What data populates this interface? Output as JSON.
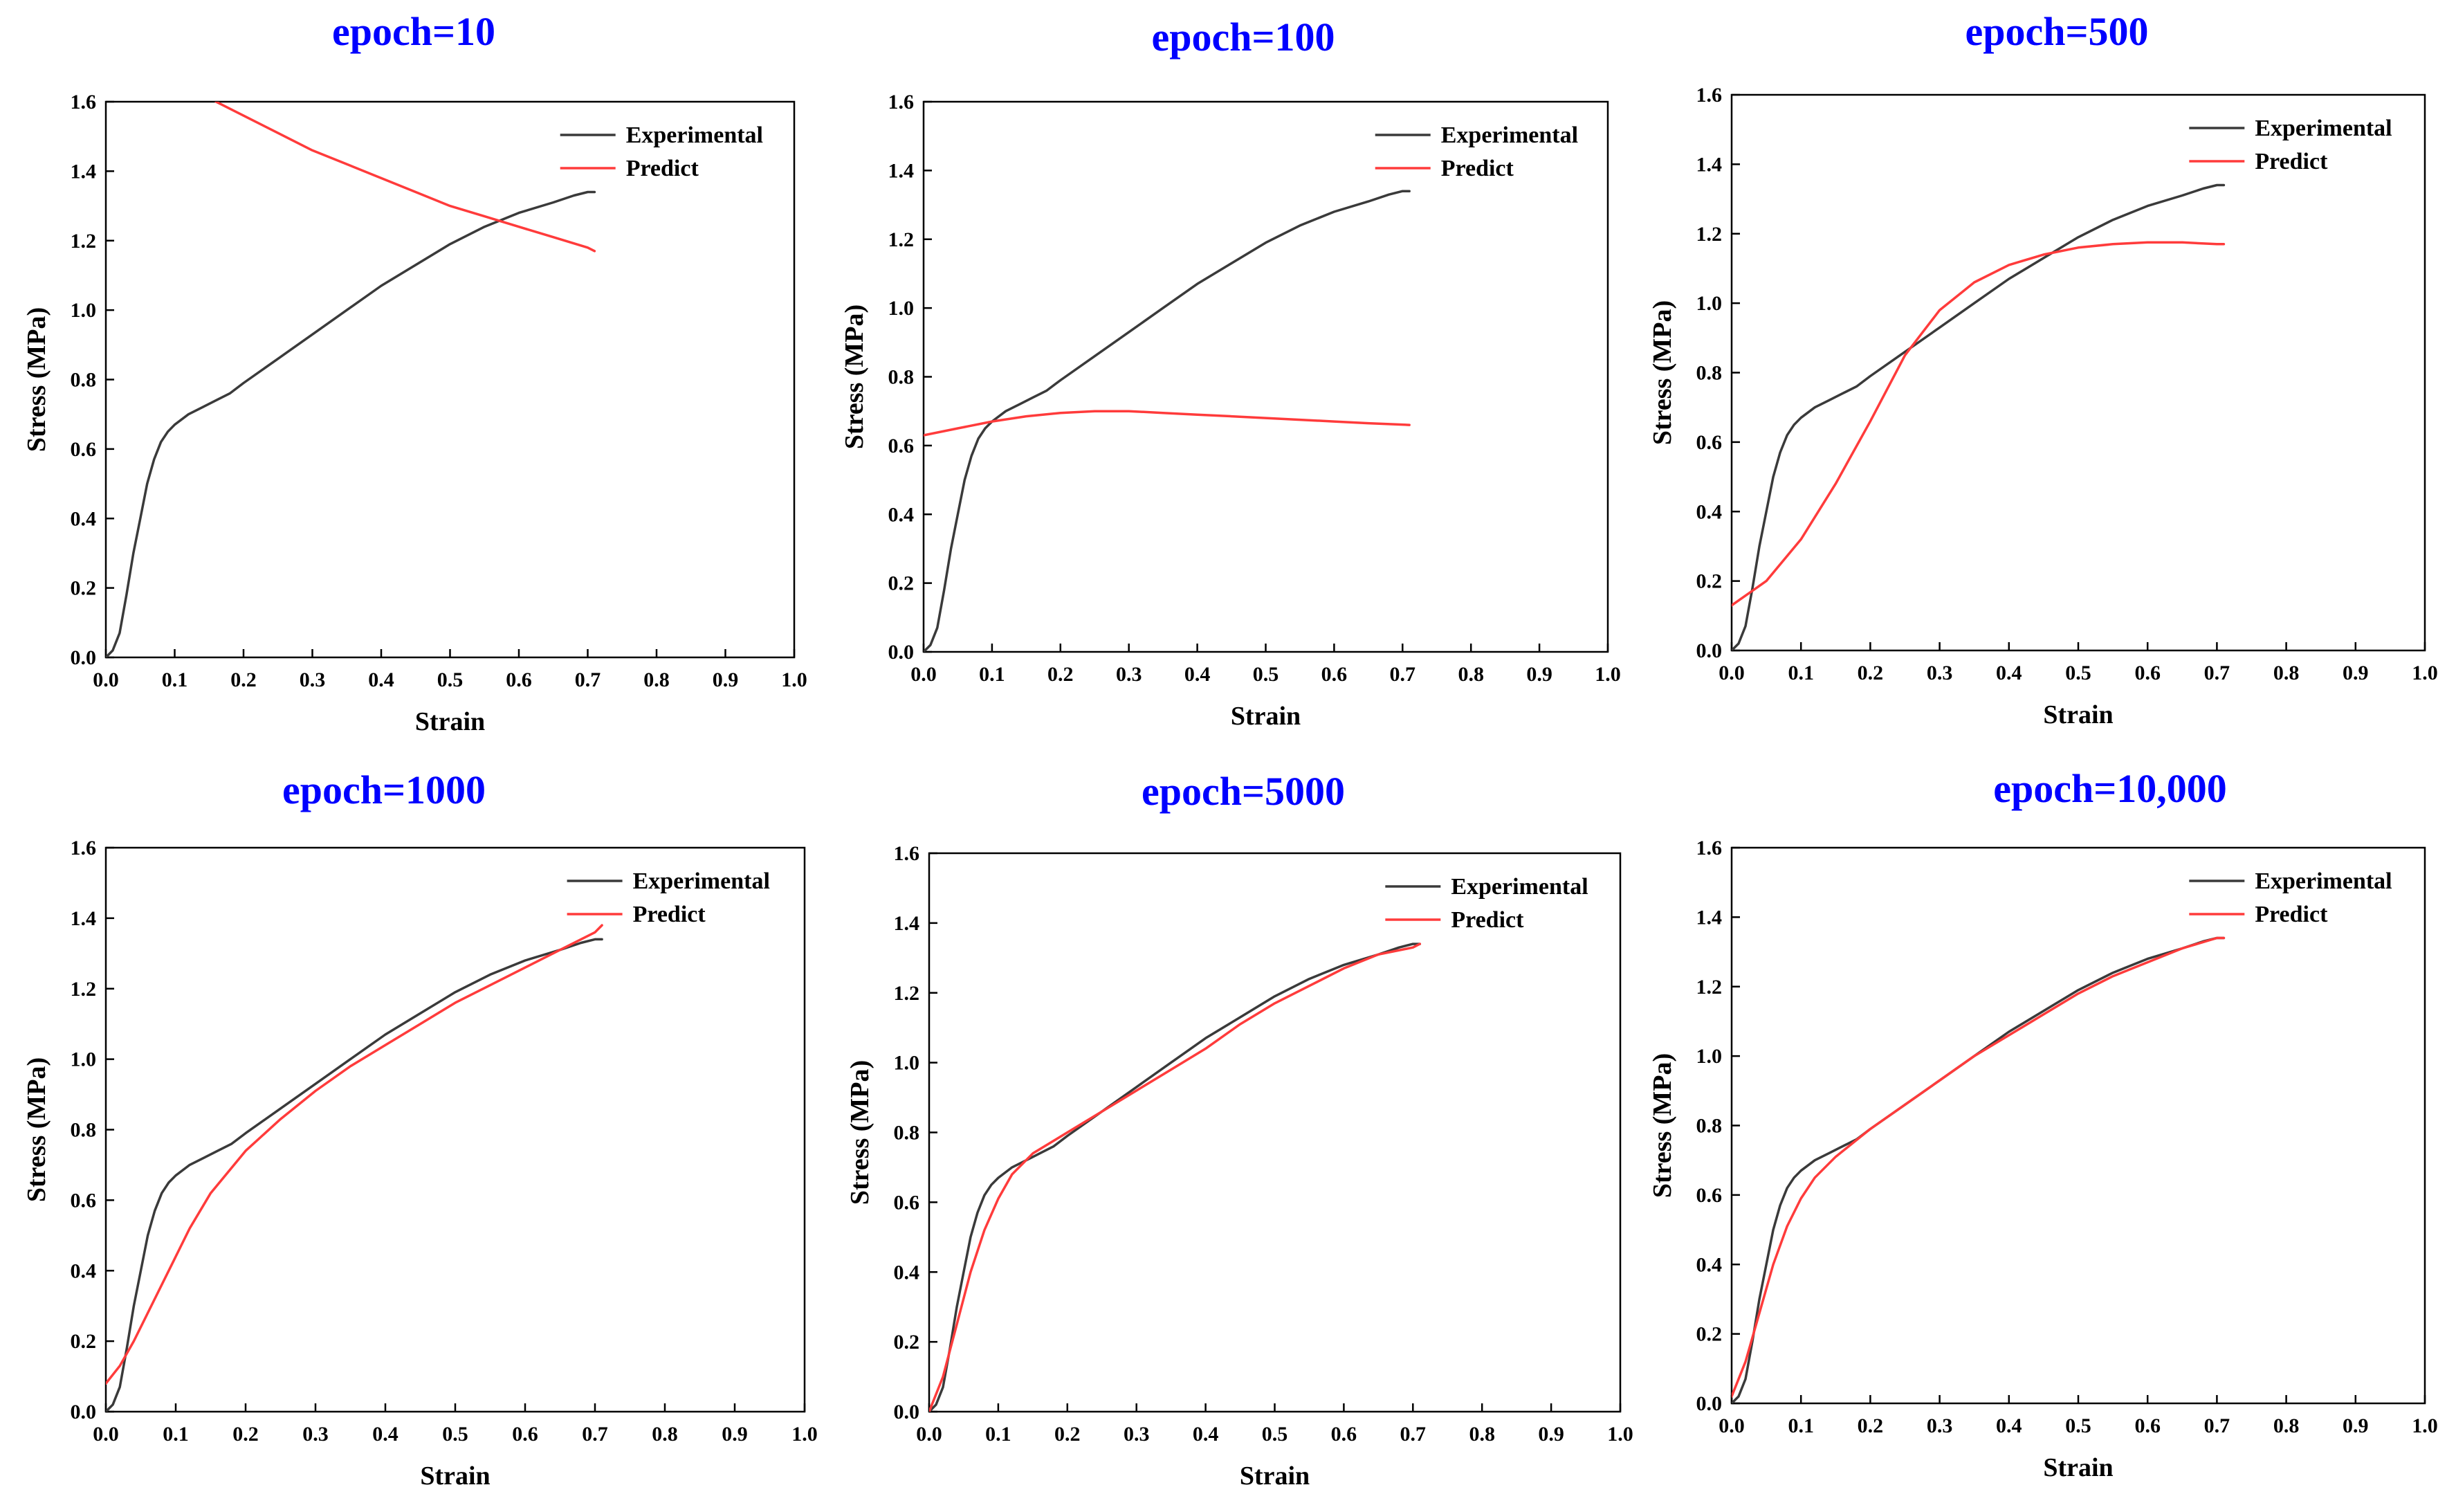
{
  "figure": {
    "axis_style": {
      "frame_color": "#000000",
      "tick_color": "#000000",
      "font_color": "#000000",
      "title_color": "#0000ff"
    },
    "series_colors": {
      "experimental": "#3a3a3a",
      "predict": "#ff3b3b"
    }
  },
  "chart_data": [
    {
      "type": "line",
      "title": "epoch=10",
      "xlabel": "Strain",
      "ylabel": "Stress (MPa)",
      "xlim": [
        0.0,
        1.0
      ],
      "ylim": [
        0.0,
        1.6
      ],
      "xticks": [
        "0.0",
        "0.1",
        "0.2",
        "0.3",
        "0.4",
        "0.5",
        "0.6",
        "0.7",
        "0.8",
        "0.9",
        "1.0"
      ],
      "yticks": [
        "0.0",
        "0.2",
        "0.4",
        "0.6",
        "0.8",
        "1.0",
        "1.2",
        "1.4",
        "1.6"
      ],
      "legend_position": "top-right",
      "series": [
        {
          "name": "Experimental",
          "color": "#3a3a3a",
          "x": [
            0.0,
            0.01,
            0.02,
            0.03,
            0.04,
            0.05,
            0.06,
            0.07,
            0.08,
            0.09,
            0.1,
            0.12,
            0.14,
            0.16,
            0.18,
            0.2,
            0.25,
            0.3,
            0.35,
            0.4,
            0.45,
            0.5,
            0.55,
            0.6,
            0.65,
            0.68,
            0.7,
            0.71
          ],
          "y": [
            0.0,
            0.02,
            0.07,
            0.18,
            0.3,
            0.4,
            0.5,
            0.57,
            0.62,
            0.65,
            0.67,
            0.7,
            0.72,
            0.74,
            0.76,
            0.79,
            0.86,
            0.93,
            1.0,
            1.07,
            1.13,
            1.19,
            1.24,
            1.28,
            1.31,
            1.33,
            1.34,
            1.34
          ]
        },
        {
          "name": "Predict",
          "color": "#ff3b3b",
          "x": [
            0.16,
            0.2,
            0.25,
            0.3,
            0.35,
            0.4,
            0.45,
            0.5,
            0.55,
            0.6,
            0.65,
            0.7,
            0.71
          ],
          "y": [
            1.6,
            1.56,
            1.51,
            1.46,
            1.42,
            1.38,
            1.34,
            1.3,
            1.27,
            1.24,
            1.21,
            1.18,
            1.17
          ]
        }
      ]
    },
    {
      "type": "line",
      "title": "epoch=100",
      "xlabel": "Strain",
      "ylabel": "Stress (MPa)",
      "xlim": [
        0.0,
        1.0
      ],
      "ylim": [
        0.0,
        1.6
      ],
      "xticks": [
        "0.0",
        "0.1",
        "0.2",
        "0.3",
        "0.4",
        "0.5",
        "0.6",
        "0.7",
        "0.8",
        "0.9",
        "1.0"
      ],
      "yticks": [
        "0.0",
        "0.2",
        "0.4",
        "0.6",
        "0.8",
        "1.0",
        "1.2",
        "1.4",
        "1.6"
      ],
      "legend_position": "top-right",
      "series": [
        {
          "name": "Experimental",
          "color": "#3a3a3a",
          "x": [
            0.0,
            0.01,
            0.02,
            0.03,
            0.04,
            0.05,
            0.06,
            0.07,
            0.08,
            0.09,
            0.1,
            0.12,
            0.14,
            0.16,
            0.18,
            0.2,
            0.25,
            0.3,
            0.35,
            0.4,
            0.45,
            0.5,
            0.55,
            0.6,
            0.65,
            0.68,
            0.7,
            0.71
          ],
          "y": [
            0.0,
            0.02,
            0.07,
            0.18,
            0.3,
            0.4,
            0.5,
            0.57,
            0.62,
            0.65,
            0.67,
            0.7,
            0.72,
            0.74,
            0.76,
            0.79,
            0.86,
            0.93,
            1.0,
            1.07,
            1.13,
            1.19,
            1.24,
            1.28,
            1.31,
            1.33,
            1.34,
            1.34
          ]
        },
        {
          "name": "Predict",
          "color": "#ff3b3b",
          "x": [
            0.0,
            0.05,
            0.1,
            0.15,
            0.2,
            0.25,
            0.3,
            0.35,
            0.4,
            0.45,
            0.5,
            0.55,
            0.6,
            0.65,
            0.71
          ],
          "y": [
            0.63,
            0.65,
            0.67,
            0.685,
            0.695,
            0.7,
            0.7,
            0.695,
            0.69,
            0.685,
            0.68,
            0.675,
            0.67,
            0.665,
            0.66
          ]
        }
      ]
    },
    {
      "type": "line",
      "title": "epoch=500",
      "xlabel": "Strain",
      "ylabel": "Stress (MPa)",
      "xlim": [
        0.0,
        1.0
      ],
      "ylim": [
        0.0,
        1.6
      ],
      "xticks": [
        "0.0",
        "0.1",
        "0.2",
        "0.3",
        "0.4",
        "0.5",
        "0.6",
        "0.7",
        "0.8",
        "0.9",
        "1.0"
      ],
      "yticks": [
        "0.0",
        "0.2",
        "0.4",
        "0.6",
        "0.8",
        "1.0",
        "1.2",
        "1.4",
        "1.6"
      ],
      "legend_position": "top-right",
      "series": [
        {
          "name": "Experimental",
          "color": "#3a3a3a",
          "x": [
            0.0,
            0.01,
            0.02,
            0.03,
            0.04,
            0.05,
            0.06,
            0.07,
            0.08,
            0.09,
            0.1,
            0.12,
            0.14,
            0.16,
            0.18,
            0.2,
            0.25,
            0.3,
            0.35,
            0.4,
            0.45,
            0.5,
            0.55,
            0.6,
            0.65,
            0.68,
            0.7,
            0.71
          ],
          "y": [
            0.0,
            0.02,
            0.07,
            0.18,
            0.3,
            0.4,
            0.5,
            0.57,
            0.62,
            0.65,
            0.67,
            0.7,
            0.72,
            0.74,
            0.76,
            0.79,
            0.86,
            0.93,
            1.0,
            1.07,
            1.13,
            1.19,
            1.24,
            1.28,
            1.31,
            1.33,
            1.34,
            1.34
          ]
        },
        {
          "name": "Predict",
          "color": "#ff3b3b",
          "x": [
            0.0,
            0.05,
            0.1,
            0.15,
            0.2,
            0.25,
            0.3,
            0.35,
            0.4,
            0.45,
            0.5,
            0.55,
            0.6,
            0.65,
            0.7,
            0.71
          ],
          "y": [
            0.13,
            0.2,
            0.32,
            0.48,
            0.66,
            0.85,
            0.98,
            1.06,
            1.11,
            1.14,
            1.16,
            1.17,
            1.175,
            1.175,
            1.17,
            1.17
          ]
        }
      ]
    },
    {
      "type": "line",
      "title": "epoch=1000",
      "xlabel": "Strain",
      "ylabel": "Stress (MPa)",
      "xlim": [
        0.0,
        1.0
      ],
      "ylim": [
        0.0,
        1.6
      ],
      "xticks": [
        "0.0",
        "0.1",
        "0.2",
        "0.3",
        "0.4",
        "0.5",
        "0.6",
        "0.7",
        "0.8",
        "0.9",
        "1.0"
      ],
      "yticks": [
        "0.0",
        "0.2",
        "0.4",
        "0.6",
        "0.8",
        "1.0",
        "1.2",
        "1.4",
        "1.6"
      ],
      "legend_position": "top-right",
      "series": [
        {
          "name": "Experimental",
          "color": "#3a3a3a",
          "x": [
            0.0,
            0.01,
            0.02,
            0.03,
            0.04,
            0.05,
            0.06,
            0.07,
            0.08,
            0.09,
            0.1,
            0.12,
            0.14,
            0.16,
            0.18,
            0.2,
            0.25,
            0.3,
            0.35,
            0.4,
            0.45,
            0.5,
            0.55,
            0.6,
            0.65,
            0.68,
            0.7,
            0.71
          ],
          "y": [
            0.0,
            0.02,
            0.07,
            0.18,
            0.3,
            0.4,
            0.5,
            0.57,
            0.62,
            0.65,
            0.67,
            0.7,
            0.72,
            0.74,
            0.76,
            0.79,
            0.86,
            0.93,
            1.0,
            1.07,
            1.13,
            1.19,
            1.24,
            1.28,
            1.31,
            1.33,
            1.34,
            1.34
          ]
        },
        {
          "name": "Predict",
          "color": "#ff3b3b",
          "x": [
            0.0,
            0.02,
            0.04,
            0.06,
            0.08,
            0.1,
            0.12,
            0.15,
            0.2,
            0.25,
            0.3,
            0.35,
            0.4,
            0.45,
            0.5,
            0.55,
            0.6,
            0.65,
            0.7,
            0.71
          ],
          "y": [
            0.08,
            0.13,
            0.2,
            0.28,
            0.36,
            0.44,
            0.52,
            0.62,
            0.74,
            0.83,
            0.91,
            0.98,
            1.04,
            1.1,
            1.16,
            1.21,
            1.26,
            1.31,
            1.36,
            1.38
          ]
        }
      ]
    },
    {
      "type": "line",
      "title": "epoch=5000",
      "xlabel": "Strain",
      "ylabel": "Stress (MPa)",
      "xlim": [
        0.0,
        1.0
      ],
      "ylim": [
        0.0,
        1.6
      ],
      "xticks": [
        "0.0",
        "0.1",
        "0.2",
        "0.3",
        "0.4",
        "0.5",
        "0.6",
        "0.7",
        "0.8",
        "0.9",
        "1.0"
      ],
      "yticks": [
        "0.0",
        "0.2",
        "0.4",
        "0.6",
        "0.8",
        "1.0",
        "1.2",
        "1.4",
        "1.6"
      ],
      "legend_position": "top-right",
      "series": [
        {
          "name": "Experimental",
          "color": "#3a3a3a",
          "x": [
            0.0,
            0.01,
            0.02,
            0.03,
            0.04,
            0.05,
            0.06,
            0.07,
            0.08,
            0.09,
            0.1,
            0.12,
            0.14,
            0.16,
            0.18,
            0.2,
            0.25,
            0.3,
            0.35,
            0.4,
            0.45,
            0.5,
            0.55,
            0.6,
            0.65,
            0.68,
            0.7,
            0.71
          ],
          "y": [
            0.0,
            0.02,
            0.07,
            0.18,
            0.3,
            0.4,
            0.5,
            0.57,
            0.62,
            0.65,
            0.67,
            0.7,
            0.72,
            0.74,
            0.76,
            0.79,
            0.86,
            0.93,
            1.0,
            1.07,
            1.13,
            1.19,
            1.24,
            1.28,
            1.31,
            1.33,
            1.34,
            1.34
          ]
        },
        {
          "name": "Predict",
          "color": "#ff3b3b",
          "x": [
            0.0,
            0.02,
            0.04,
            0.06,
            0.08,
            0.1,
            0.12,
            0.15,
            0.2,
            0.25,
            0.3,
            0.35,
            0.4,
            0.45,
            0.5,
            0.55,
            0.6,
            0.65,
            0.7,
            0.71
          ],
          "y": [
            0.0,
            0.1,
            0.25,
            0.4,
            0.52,
            0.61,
            0.68,
            0.74,
            0.8,
            0.86,
            0.92,
            0.98,
            1.04,
            1.11,
            1.17,
            1.22,
            1.27,
            1.31,
            1.33,
            1.34
          ]
        }
      ]
    },
    {
      "type": "line",
      "title": "epoch=10,000",
      "xlabel": "Strain",
      "ylabel": "Stress (MPa)",
      "xlim": [
        0.0,
        1.0
      ],
      "ylim": [
        0.0,
        1.6
      ],
      "xticks": [
        "0.0",
        "0.1",
        "0.2",
        "0.3",
        "0.4",
        "0.5",
        "0.6",
        "0.7",
        "0.8",
        "0.9",
        "1.0"
      ],
      "yticks": [
        "0.0",
        "0.2",
        "0.4",
        "0.6",
        "0.8",
        "1.0",
        "1.2",
        "1.4",
        "1.6"
      ],
      "legend_position": "top-right",
      "series": [
        {
          "name": "Experimental",
          "color": "#3a3a3a",
          "x": [
            0.0,
            0.01,
            0.02,
            0.03,
            0.04,
            0.05,
            0.06,
            0.07,
            0.08,
            0.09,
            0.1,
            0.12,
            0.14,
            0.16,
            0.18,
            0.2,
            0.25,
            0.3,
            0.35,
            0.4,
            0.45,
            0.5,
            0.55,
            0.6,
            0.65,
            0.68,
            0.7,
            0.71
          ],
          "y": [
            0.0,
            0.02,
            0.07,
            0.18,
            0.3,
            0.4,
            0.5,
            0.57,
            0.62,
            0.65,
            0.67,
            0.7,
            0.72,
            0.74,
            0.76,
            0.79,
            0.86,
            0.93,
            1.0,
            1.07,
            1.13,
            1.19,
            1.24,
            1.28,
            1.31,
            1.33,
            1.34,
            1.34
          ]
        },
        {
          "name": "Predict",
          "color": "#ff3b3b",
          "x": [
            0.0,
            0.02,
            0.04,
            0.06,
            0.08,
            0.1,
            0.12,
            0.15,
            0.2,
            0.25,
            0.3,
            0.35,
            0.4,
            0.45,
            0.5,
            0.55,
            0.6,
            0.65,
            0.7,
            0.71
          ],
          "y": [
            0.02,
            0.12,
            0.26,
            0.4,
            0.51,
            0.59,
            0.65,
            0.71,
            0.79,
            0.86,
            0.93,
            1.0,
            1.06,
            1.12,
            1.18,
            1.23,
            1.27,
            1.31,
            1.34,
            1.34
          ]
        }
      ]
    }
  ]
}
